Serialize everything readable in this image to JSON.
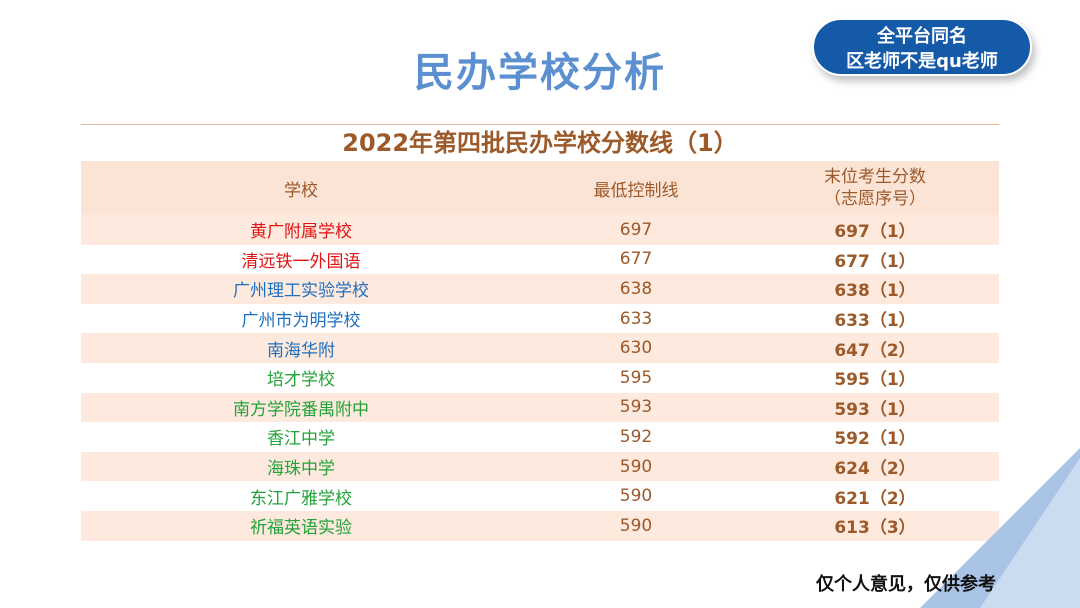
{
  "title": "民办学校分析",
  "badge": {
    "line1": "全平台同名",
    "line2": "区老师不是qu老师"
  },
  "table": {
    "title": "2022年第四批民办学校分数线（1）",
    "headers": {
      "school": "学校",
      "min_line": "最低控制线",
      "last_score_1": "末位考生分数",
      "last_score_2": "（志愿序号）"
    },
    "rows": [
      {
        "school": "黄广附属学校",
        "min": "697",
        "last": "697（1）",
        "color": "#e01414"
      },
      {
        "school": "清远铁一外国语",
        "min": "677",
        "last": "677（1）",
        "color": "#e01414"
      },
      {
        "school": "广州理工实验学校",
        "min": "638",
        "last": "638（1）",
        "color": "#1f6fbf"
      },
      {
        "school": "广州市为明学校",
        "min": "633",
        "last": "633（1）",
        "color": "#1f6fbf"
      },
      {
        "school": "南海华附",
        "min": "630",
        "last": "647（2）",
        "color": "#1f6fbf"
      },
      {
        "school": "培才学校",
        "min": "595",
        "last": "595（1）",
        "color": "#22a33a"
      },
      {
        "school": "南方学院番禺附中",
        "min": "593",
        "last": "593（1）",
        "color": "#22a33a"
      },
      {
        "school": "香江中学",
        "min": "592",
        "last": "592（1）",
        "color": "#22a33a"
      },
      {
        "school": "海珠中学",
        "min": "590",
        "last": "624（2）",
        "color": "#22a33a"
      },
      {
        "school": "东江广雅学校",
        "min": "590",
        "last": "621（2）",
        "color": "#22a33a"
      },
      {
        "school": "祈福英语实验",
        "min": "590",
        "last": "613（3）",
        "color": "#22a33a"
      }
    ]
  },
  "note": "仅个人意见，仅供参考"
}
